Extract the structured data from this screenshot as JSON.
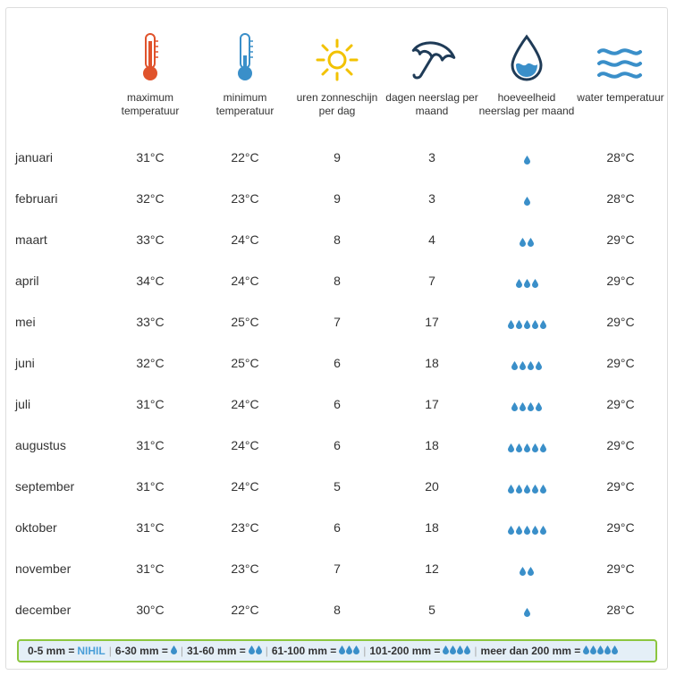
{
  "columns": [
    {
      "label": "maximum temperatuur",
      "icon": "thermometer-hot-icon"
    },
    {
      "label": "minimum temperatuur",
      "icon": "thermometer-cold-icon"
    },
    {
      "label": "uren zonneschijn per dag",
      "icon": "sun-icon"
    },
    {
      "label": "dagen neerslag per maand",
      "icon": "umbrella-icon"
    },
    {
      "label": "hoeveelheid neerslag per maand",
      "icon": "water-drop-icon"
    },
    {
      "label": "water temperatuur",
      "icon": "waves-icon"
    }
  ],
  "rows": [
    {
      "month": "januari",
      "max": "31°C",
      "min": "22°C",
      "sun": "9",
      "rain_days": "3",
      "drops": 1,
      "water": "28°C"
    },
    {
      "month": "februari",
      "max": "32°C",
      "min": "23°C",
      "sun": "9",
      "rain_days": "3",
      "drops": 1,
      "water": "28°C"
    },
    {
      "month": "maart",
      "max": "33°C",
      "min": "24°C",
      "sun": "8",
      "rain_days": "4",
      "drops": 2,
      "water": "29°C"
    },
    {
      "month": "april",
      "max": "34°C",
      "min": "24°C",
      "sun": "8",
      "rain_days": "7",
      "drops": 3,
      "water": "29°C"
    },
    {
      "month": "mei",
      "max": "33°C",
      "min": "25°C",
      "sun": "7",
      "rain_days": "17",
      "drops": 5,
      "water": "29°C"
    },
    {
      "month": "juni",
      "max": "32°C",
      "min": "25°C",
      "sun": "6",
      "rain_days": "18",
      "drops": 4,
      "water": "29°C"
    },
    {
      "month": "juli",
      "max": "31°C",
      "min": "24°C",
      "sun": "6",
      "rain_days": "17",
      "drops": 4,
      "water": "29°C"
    },
    {
      "month": "augustus",
      "max": "31°C",
      "min": "24°C",
      "sun": "6",
      "rain_days": "18",
      "drops": 5,
      "water": "29°C"
    },
    {
      "month": "september",
      "max": "31°C",
      "min": "24°C",
      "sun": "5",
      "rain_days": "20",
      "drops": 5,
      "water": "29°C"
    },
    {
      "month": "oktober",
      "max": "31°C",
      "min": "23°C",
      "sun": "6",
      "rain_days": "18",
      "drops": 5,
      "water": "29°C"
    },
    {
      "month": "november",
      "max": "31°C",
      "min": "23°C",
      "sun": "7",
      "rain_days": "12",
      "drops": 2,
      "water": "29°C"
    },
    {
      "month": "december",
      "max": "30°C",
      "min": "22°C",
      "sun": "8",
      "rain_days": "5",
      "drops": 1,
      "water": "28°C"
    }
  ],
  "legend": {
    "items": [
      {
        "range": "0-5 mm =",
        "text": "NIHIL",
        "drops": 0
      },
      {
        "range": "6-30 mm =",
        "text": "",
        "drops": 1
      },
      {
        "range": "31-60 mm =",
        "text": "",
        "drops": 2
      },
      {
        "range": "61-100 mm =",
        "text": "",
        "drops": 3
      },
      {
        "range": "101-200 mm =",
        "text": "",
        "drops": 4
      },
      {
        "range": "meer dan 200 mm =",
        "text": "",
        "drops": 5
      }
    ]
  },
  "colors": {
    "hot": "#e0532c",
    "cold": "#3a8fc9",
    "sun": "#f2c200",
    "dark": "#1f3b57",
    "drop": "#3a8fc9",
    "legend_border": "#8cc63f",
    "legend_bg": "#e4eff7"
  }
}
